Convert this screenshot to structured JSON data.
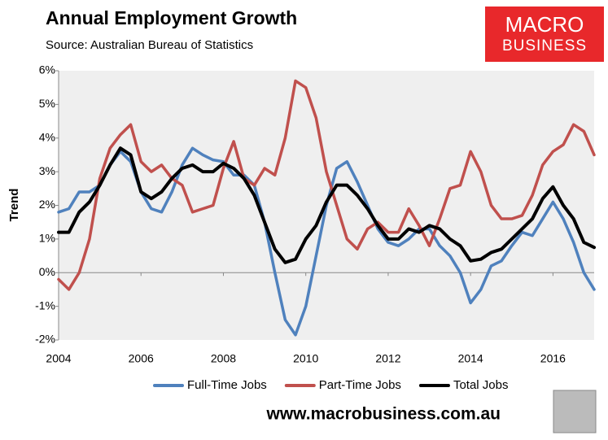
{
  "chart_data": {
    "type": "line",
    "title": "Annual Employment Growth",
    "subtitle": "Source: Australian Bureau of Statistics",
    "ylabel": "Trend",
    "logo": [
      "MACRO",
      "BUSINESS"
    ],
    "footer": "www.macrobusiness.com.au",
    "x": [
      2004,
      2004.25,
      2004.5,
      2004.75,
      2005,
      2005.25,
      2005.5,
      2005.75,
      2006,
      2006.25,
      2006.5,
      2006.75,
      2007,
      2007.25,
      2007.5,
      2007.75,
      2008,
      2008.25,
      2008.5,
      2008.75,
      2009,
      2009.25,
      2009.5,
      2009.75,
      2010,
      2010.25,
      2010.5,
      2010.75,
      2011,
      2011.25,
      2011.5,
      2011.75,
      2012,
      2012.25,
      2012.5,
      2012.75,
      2013,
      2013.25,
      2013.5,
      2013.75,
      2014,
      2014.25,
      2014.5,
      2014.75,
      2015,
      2015.25,
      2015.5,
      2015.75,
      2016,
      2016.25,
      2016.5,
      2016.75,
      2017
    ],
    "series": [
      {
        "name": "Full-Time Jobs",
        "color": "#4f81bd",
        "values": [
          1.8,
          1.9,
          2.4,
          2.4,
          2.6,
          3.2,
          3.6,
          3.3,
          2.4,
          1.9,
          1.8,
          2.4,
          3.2,
          3.7,
          3.5,
          3.35,
          3.3,
          2.9,
          2.9,
          2.6,
          1.5,
          0.0,
          -1.4,
          -1.85,
          -1.0,
          0.5,
          2.0,
          3.1,
          3.3,
          2.7,
          2.0,
          1.3,
          0.9,
          0.8,
          1.0,
          1.3,
          1.3,
          0.8,
          0.5,
          0.0,
          -0.9,
          -0.5,
          0.2,
          0.35,
          0.8,
          1.2,
          1.1,
          1.6,
          2.1,
          1.6,
          0.9,
          0.0,
          -0.5
        ]
      },
      {
        "name": "Part-Time Jobs",
        "color": "#c0504d",
        "values": [
          -0.2,
          -0.5,
          0.0,
          1.0,
          2.8,
          3.7,
          4.1,
          4.4,
          3.3,
          3.0,
          3.2,
          2.8,
          2.6,
          1.8,
          1.9,
          2.0,
          3.1,
          3.9,
          2.8,
          2.6,
          3.1,
          2.9,
          4.0,
          5.7,
          5.5,
          4.6,
          3.0,
          2.0,
          1.0,
          0.7,
          1.3,
          1.5,
          1.2,
          1.2,
          1.9,
          1.4,
          0.8,
          1.6,
          2.5,
          2.6,
          3.6,
          3.0,
          2.0,
          1.6,
          1.6,
          1.7,
          2.3,
          3.2,
          3.6,
          3.8,
          4.4,
          4.2,
          3.5
        ]
      },
      {
        "name": "Total Jobs",
        "color": "#000000",
        "values": [
          1.2,
          1.2,
          1.8,
          2.1,
          2.6,
          3.2,
          3.7,
          3.5,
          2.4,
          2.2,
          2.4,
          2.8,
          3.1,
          3.2,
          3.0,
          3.0,
          3.25,
          3.1,
          2.8,
          2.3,
          1.5,
          0.7,
          0.3,
          0.4,
          1.0,
          1.4,
          2.1,
          2.6,
          2.6,
          2.3,
          1.9,
          1.4,
          1.0,
          1.0,
          1.3,
          1.2,
          1.4,
          1.3,
          1.0,
          0.8,
          0.35,
          0.4,
          0.6,
          0.7,
          1.0,
          1.3,
          1.6,
          2.2,
          2.55,
          2.0,
          1.6,
          0.9,
          0.75
        ]
      }
    ],
    "xlim": [
      2004,
      2017
    ],
    "xticks": [
      2004,
      2006,
      2008,
      2010,
      2012,
      2014,
      2016
    ],
    "ylim": [
      -2,
      6
    ],
    "yticks": [
      {
        "value": -2,
        "label": "-2%"
      },
      {
        "value": -1,
        "label": "-1%"
      },
      {
        "value": 0,
        "label": "0%"
      },
      {
        "value": 1,
        "label": "1%"
      },
      {
        "value": 2,
        "label": "2%"
      },
      {
        "value": 3,
        "label": "3%"
      },
      {
        "value": 4,
        "label": "4%"
      },
      {
        "value": 5,
        "label": "5%"
      },
      {
        "value": 6,
        "label": "6%"
      }
    ],
    "grid": false,
    "legend": "bottom"
  }
}
